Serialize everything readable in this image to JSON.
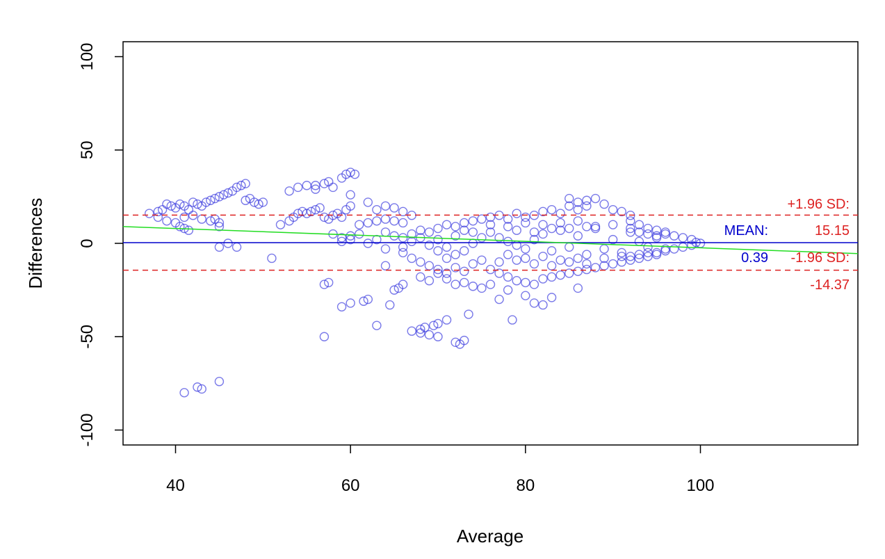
{
  "chart_data": {
    "type": "scatter",
    "plot_kind": "Bland-Altman",
    "xlabel": "Average",
    "ylabel": "Differences",
    "xlim": [
      34,
      118
    ],
    "ylim": [
      -108,
      108
    ],
    "x_ticks": [
      "40",
      "60",
      "80",
      "100"
    ],
    "x_tick_values": [
      40,
      60,
      80,
      100
    ],
    "y_ticks": [
      "100",
      "50",
      "0",
      "-50",
      "-100"
    ],
    "y_tick_values": [
      100,
      50,
      0,
      -50,
      -100
    ],
    "grid": false,
    "mean_line": {
      "y": 0.39,
      "color": "#0000cc"
    },
    "upper_limit": {
      "y": 15.15,
      "color": "#dd2222",
      "style": "dashed"
    },
    "lower_limit": {
      "y": -14.37,
      "color": "#dd2222",
      "style": "dashed"
    },
    "trend_line": {
      "x": [
        34,
        118
      ],
      "y": [
        9.0,
        -5.5
      ],
      "color": "#22dd22"
    },
    "annotations": {
      "upper_label": "+1.96 SD:",
      "upper_value": "15.15",
      "mean_label": "MEAN:",
      "mean_value": "0.39",
      "lower_label": "-1.96 SD:",
      "lower_value": "-14.37"
    },
    "annotation_colors": {
      "sd": "#dd2222",
      "mean": "#0000cc"
    },
    "point_color": "#3333dd",
    "series": [
      {
        "values": [
          [
            37,
            16
          ],
          [
            38,
            17
          ],
          [
            38.5,
            18
          ],
          [
            39,
            21
          ],
          [
            39.5,
            20
          ],
          [
            40,
            19
          ],
          [
            40.5,
            21
          ],
          [
            41,
            20
          ],
          [
            41.5,
            18
          ],
          [
            42,
            22
          ],
          [
            42.5,
            21
          ],
          [
            43,
            20
          ],
          [
            43.5,
            22
          ],
          [
            44,
            23
          ],
          [
            44.5,
            24
          ],
          [
            45,
            25
          ],
          [
            45.5,
            26
          ],
          [
            46,
            27
          ],
          [
            46.5,
            28
          ],
          [
            47,
            30
          ],
          [
            47.5,
            31
          ],
          [
            48,
            32
          ],
          [
            48,
            23
          ],
          [
            48.5,
            24
          ],
          [
            49,
            22
          ],
          [
            49.5,
            21
          ],
          [
            50,
            22
          ],
          [
            38,
            14
          ],
          [
            39,
            12
          ],
          [
            40,
            11
          ],
          [
            40.5,
            9
          ],
          [
            41,
            8
          ],
          [
            41.5,
            7
          ],
          [
            44,
            12
          ],
          [
            45,
            11
          ],
          [
            45,
            9
          ],
          [
            44.5,
            13
          ],
          [
            43,
            13
          ],
          [
            42,
            15
          ],
          [
            41,
            14
          ],
          [
            45,
            -2
          ],
          [
            46,
            0
          ],
          [
            47,
            -2
          ],
          [
            51,
            -8
          ],
          [
            41,
            -80
          ],
          [
            42.5,
            -77
          ],
          [
            43,
            -78
          ],
          [
            45,
            -74
          ],
          [
            52,
            10
          ],
          [
            53,
            12
          ],
          [
            53.5,
            14
          ],
          [
            54,
            16
          ],
          [
            54.5,
            17
          ],
          [
            55,
            16
          ],
          [
            55.5,
            17
          ],
          [
            56,
            18
          ],
          [
            56.5,
            19
          ],
          [
            57,
            14
          ],
          [
            57.5,
            13
          ],
          [
            58,
            15
          ],
          [
            58.5,
            16
          ],
          [
            59,
            14
          ],
          [
            59.5,
            18
          ],
          [
            60,
            20
          ],
          [
            53,
            28
          ],
          [
            54,
            30
          ],
          [
            55,
            31
          ],
          [
            56,
            29
          ],
          [
            57,
            32
          ],
          [
            57.5,
            33
          ],
          [
            58,
            30
          ],
          [
            59,
            35
          ],
          [
            59.5,
            37
          ],
          [
            60,
            38
          ],
          [
            60.5,
            37
          ],
          [
            56,
            31
          ],
          [
            60,
            26
          ],
          [
            62,
            22
          ],
          [
            58,
            5
          ],
          [
            59,
            3
          ],
          [
            60,
            4
          ],
          [
            61,
            5
          ],
          [
            60,
            2
          ],
          [
            59,
            1
          ],
          [
            57,
            -22
          ],
          [
            57.5,
            -21
          ],
          [
            57,
            -50
          ],
          [
            59,
            -34
          ],
          [
            60,
            -32
          ],
          [
            61.5,
            -31
          ],
          [
            62,
            -30
          ],
          [
            63,
            -44
          ],
          [
            64.5,
            -33
          ],
          [
            65,
            -25
          ],
          [
            65.5,
            -24
          ],
          [
            66,
            -22
          ],
          [
            64,
            -12
          ],
          [
            61,
            10
          ],
          [
            62,
            11
          ],
          [
            63,
            12
          ],
          [
            64,
            13
          ],
          [
            65,
            12
          ],
          [
            66,
            11
          ],
          [
            63,
            18
          ],
          [
            64,
            20
          ],
          [
            65,
            19
          ],
          [
            66,
            17
          ],
          [
            67,
            15
          ],
          [
            67,
            -47
          ],
          [
            68,
            -46
          ],
          [
            68,
            -48
          ],
          [
            68.5,
            -45
          ],
          [
            69,
            -49
          ],
          [
            69.5,
            -44
          ],
          [
            70,
            -43
          ],
          [
            70,
            -50
          ],
          [
            71,
            -41
          ],
          [
            72,
            -53
          ],
          [
            73,
            -52
          ],
          [
            72.5,
            -54
          ],
          [
            73.5,
            -38
          ],
          [
            68,
            -18
          ],
          [
            69,
            -20
          ],
          [
            70,
            -16
          ],
          [
            71,
            -19
          ],
          [
            72,
            -22
          ],
          [
            73,
            -21
          ],
          [
            74,
            -23
          ],
          [
            75,
            -24
          ],
          [
            76,
            -22
          ],
          [
            77,
            -30
          ],
          [
            78,
            -25
          ],
          [
            78.5,
            -41
          ],
          [
            80,
            -28
          ],
          [
            81,
            -32
          ],
          [
            82,
            -33
          ],
          [
            83,
            -29
          ],
          [
            86,
            -24
          ],
          [
            66,
            3
          ],
          [
            67,
            5
          ],
          [
            68,
            7
          ],
          [
            69,
            6
          ],
          [
            70,
            8
          ],
          [
            71,
            10
          ],
          [
            72,
            9
          ],
          [
            73,
            11
          ],
          [
            74,
            12
          ],
          [
            75,
            13
          ],
          [
            66,
            -5
          ],
          [
            67,
            -8
          ],
          [
            68,
            -10
          ],
          [
            69,
            -12
          ],
          [
            70,
            -14
          ],
          [
            71,
            -16
          ],
          [
            72,
            -13
          ],
          [
            73,
            -15
          ],
          [
            74,
            -11
          ],
          [
            75,
            -9
          ],
          [
            76,
            14
          ],
          [
            77,
            15
          ],
          [
            78,
            13
          ],
          [
            79,
            16
          ],
          [
            80,
            14
          ],
          [
            81,
            15
          ],
          [
            82,
            17
          ],
          [
            83,
            18
          ],
          [
            84,
            16
          ],
          [
            85,
            20
          ],
          [
            86,
            22
          ],
          [
            87,
            23
          ],
          [
            88,
            24
          ],
          [
            85,
            24
          ],
          [
            87,
            20
          ],
          [
            86,
            18
          ],
          [
            89,
            21
          ],
          [
            90,
            18
          ],
          [
            91,
            17
          ],
          [
            92,
            15
          ],
          [
            76,
            -14
          ],
          [
            77,
            -16
          ],
          [
            78,
            -18
          ],
          [
            79,
            -20
          ],
          [
            80,
            -21
          ],
          [
            81,
            -22
          ],
          [
            82,
            -19
          ],
          [
            83,
            -18
          ],
          [
            84,
            -17
          ],
          [
            85,
            -16
          ],
          [
            86,
            -15
          ],
          [
            87,
            -14
          ],
          [
            88,
            -13
          ],
          [
            89,
            -12
          ],
          [
            90,
            -11
          ],
          [
            91,
            -10
          ],
          [
            92,
            -9
          ],
          [
            93,
            -8
          ],
          [
            94,
            -7
          ],
          [
            95,
            -6
          ],
          [
            76,
            6
          ],
          [
            77,
            3
          ],
          [
            78,
            1
          ],
          [
            79,
            -1
          ],
          [
            80,
            -3
          ],
          [
            81,
            2
          ],
          [
            82,
            5
          ],
          [
            83,
            -4
          ],
          [
            84,
            7
          ],
          [
            85,
            -2
          ],
          [
            86,
            4
          ],
          [
            87,
            -6
          ],
          [
            88,
            8
          ],
          [
            89,
            -3
          ],
          [
            90,
            2
          ],
          [
            91,
            -5
          ],
          [
            92,
            6
          ],
          [
            93,
            1
          ],
          [
            94,
            -2
          ],
          [
            95,
            3
          ],
          [
            76,
            10
          ],
          [
            77,
            -10
          ],
          [
            78,
            9
          ],
          [
            79,
            -9
          ],
          [
            80,
            11
          ],
          [
            81,
            -11
          ],
          [
            82,
            10
          ],
          [
            83,
            -12
          ],
          [
            84,
            11
          ],
          [
            85,
            -10
          ],
          [
            86,
            12
          ],
          [
            87,
            -11
          ],
          [
            88,
            9
          ],
          [
            89,
            -8
          ],
          [
            90,
            10
          ],
          [
            91,
            -7
          ],
          [
            92,
            8
          ],
          [
            93,
            6
          ],
          [
            94,
            5
          ],
          [
            95,
            4
          ],
          [
            96,
            5
          ],
          [
            96,
            -4
          ],
          [
            97,
            4
          ],
          [
            97,
            -3
          ],
          [
            98,
            3
          ],
          [
            98,
            -2
          ],
          [
            99,
            2
          ],
          [
            99,
            -1
          ],
          [
            100,
            0
          ],
          [
            99.5,
            0.5
          ],
          [
            92,
            12
          ],
          [
            93,
            10
          ],
          [
            94,
            8
          ],
          [
            95,
            7
          ],
          [
            96,
            6
          ],
          [
            92,
            -7
          ],
          [
            93,
            -6
          ],
          [
            94,
            -5
          ],
          [
            95,
            -5
          ],
          [
            96,
            -3
          ],
          [
            70,
            2
          ],
          [
            71,
            -2
          ],
          [
            72,
            4
          ],
          [
            73,
            -4
          ],
          [
            74,
            0
          ],
          [
            75,
            3
          ],
          [
            74,
            6
          ],
          [
            73,
            7
          ],
          [
            72,
            -6
          ],
          [
            71,
            -8
          ],
          [
            62,
            0
          ],
          [
            63,
            2
          ],
          [
            64,
            -3
          ],
          [
            65,
            4
          ],
          [
            66,
            -2
          ],
          [
            67,
            1
          ],
          [
            68,
            3
          ],
          [
            69,
            -1
          ],
          [
            70,
            -4
          ],
          [
            64,
            6
          ],
          [
            78,
            -6
          ],
          [
            79,
            7
          ],
          [
            80,
            -8
          ],
          [
            81,
            6
          ],
          [
            82,
            -7
          ],
          [
            83,
            8
          ],
          [
            84,
            -9
          ],
          [
            85,
            8
          ],
          [
            86,
            -8
          ],
          [
            87,
            9
          ]
        ]
      }
    ]
  }
}
